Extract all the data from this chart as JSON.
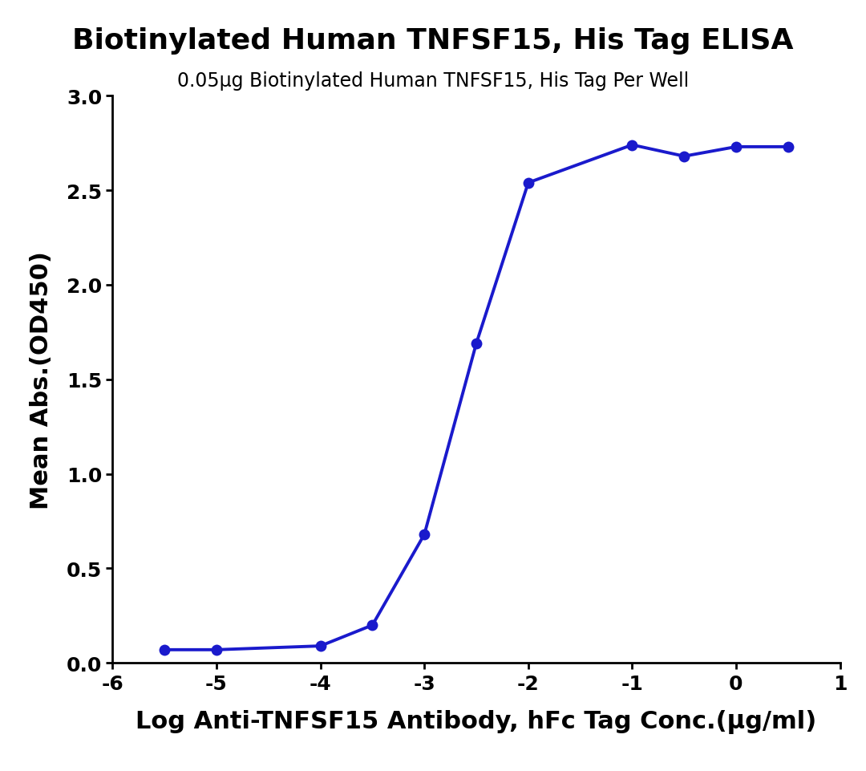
{
  "title": "Biotinylated Human TNFSF15, His Tag ELISA",
  "subtitle": "0.05μg Biotinylated Human TNFSF15, His Tag Per Well",
  "xlabel": "Log Anti-TNFSF15 Antibody, hFc Tag Conc.(μg/ml)",
  "ylabel": "Mean Abs.(OD450)",
  "x_data": [
    -5.5,
    -5.0,
    -4.0,
    -3.5,
    -3.0,
    -2.5,
    -2.0,
    -1.0,
    -0.5,
    0.0,
    0.5
  ],
  "y_data": [
    0.07,
    0.07,
    0.09,
    0.2,
    0.68,
    1.69,
    2.54,
    2.74,
    2.68,
    2.73,
    2.73
  ],
  "xlim": [
    -6,
    1
  ],
  "ylim": [
    0.0,
    3.0
  ],
  "xticks": [
    -6,
    -5,
    -4,
    -3,
    -2,
    -1,
    0,
    1
  ],
  "yticks": [
    0.0,
    0.5,
    1.0,
    1.5,
    2.0,
    2.5,
    3.0
  ],
  "curve_color": "#1a1acc",
  "marker_color": "#1a1acc",
  "title_fontsize": 26,
  "subtitle_fontsize": 17,
  "axis_label_fontsize": 22,
  "tick_fontsize": 18,
  "line_width": 2.8,
  "marker_size": 10,
  "background_color": "#ffffff"
}
